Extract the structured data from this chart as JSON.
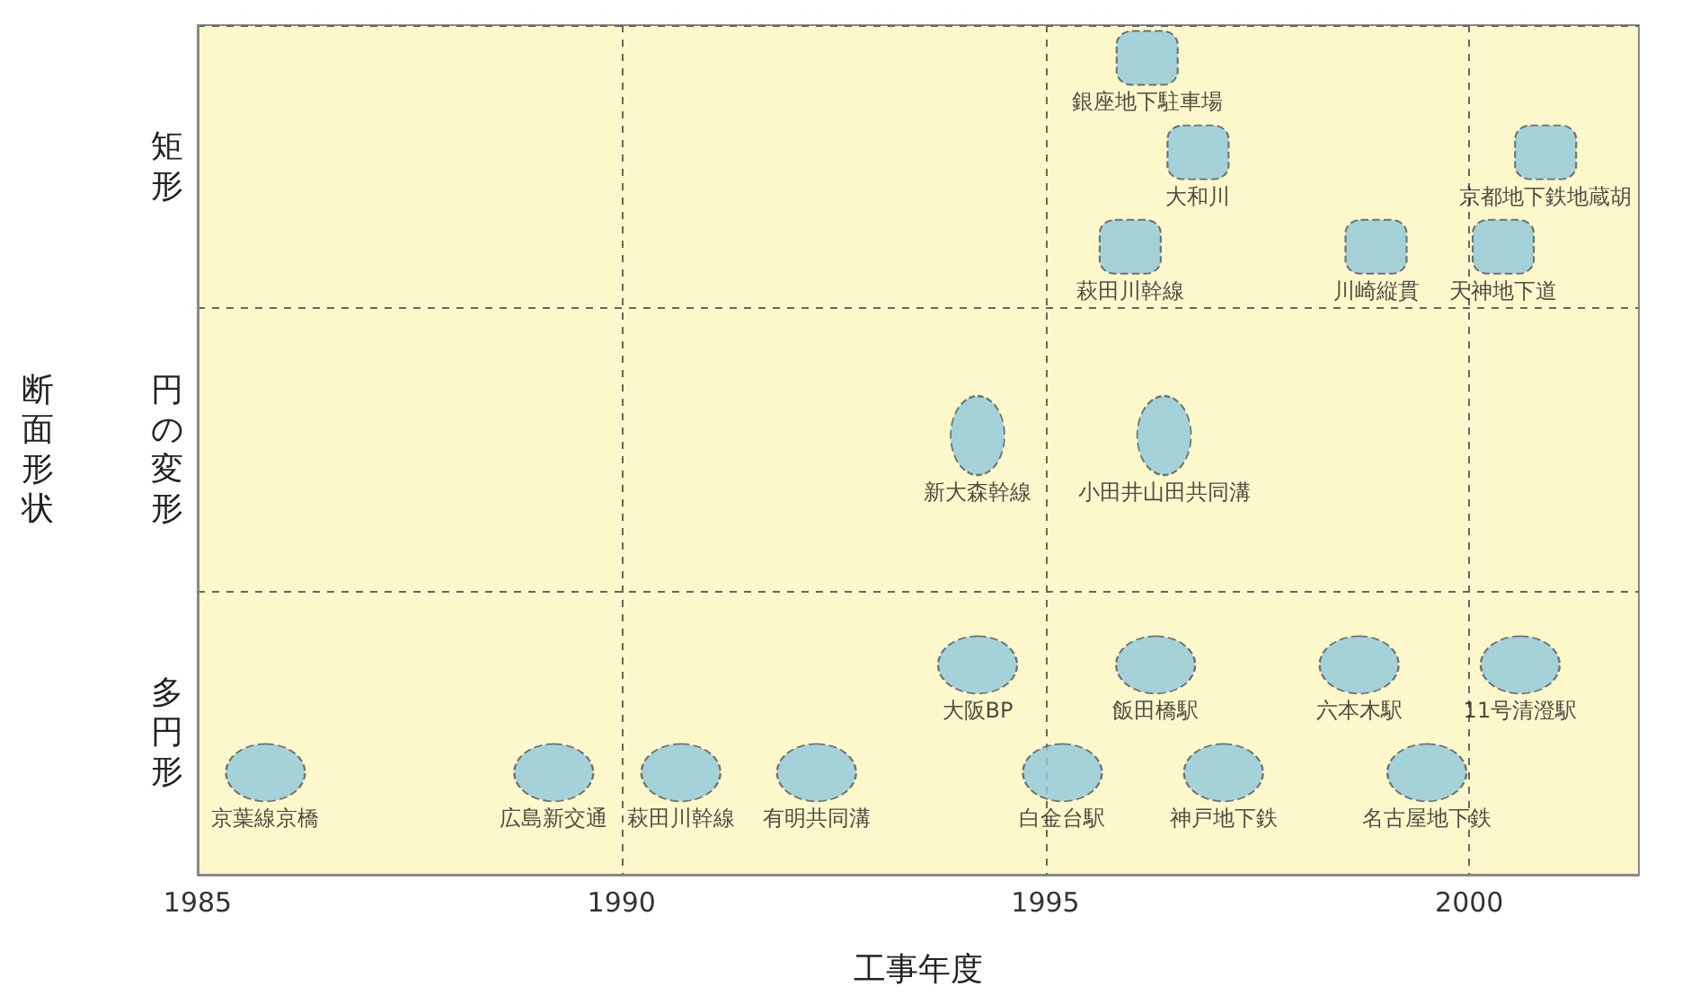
{
  "chart_data": {
    "type": "scatter",
    "orientation": "horizontal",
    "xlabel": "工事年度",
    "ylabel": "断面形状",
    "categories": [
      "矩形",
      "円の変形",
      "多円形"
    ],
    "xlim": [
      1985,
      2002
    ],
    "xticks": [
      1985,
      1990,
      1995,
      2000
    ],
    "grid": true,
    "legend": false,
    "marker": "circle",
    "series": [
      {
        "name": "京葉線京橋",
        "color": "#8fc8dc",
        "values": [
          null,
          null,
          1985.8
        ]
      },
      {
        "name": "広島新交通",
        "color": "#8fc8dc",
        "values": [
          null,
          null,
          1989.2
        ]
      },
      {
        "name": "萩田川幹線",
        "color": "#8fc8dc",
        "values": [
          null,
          null,
          1990.7
        ]
      },
      {
        "name": "有明共同溝",
        "color": "#8fc8dc",
        "values": [
          null,
          null,
          1992.3
        ]
      },
      {
        "name": "白金台駅",
        "color": "#8fc8dc",
        "values": [
          null,
          null,
          1995.2
        ]
      },
      {
        "name": "神戸地下鉄",
        "color": "#8fc8dc",
        "values": [
          null,
          null,
          1997.1
        ]
      },
      {
        "name": "名古屋地下鉄",
        "color": "#8fc8dc",
        "values": [
          null,
          null,
          1999.5
        ]
      },
      {
        "name": "大阪BP",
        "color": "#8fc8dc",
        "values": [
          null,
          null,
          1994.2
        ]
      },
      {
        "name": "飯田橋駅",
        "color": "#8fc8dc",
        "values": [
          null,
          null,
          1996.3
        ]
      },
      {
        "name": "六本木駅",
        "color": "#8fc8dc",
        "values": [
          null,
          null,
          1998.7
        ]
      },
      {
        "name": "11号清澄駅",
        "color": "#8fc8dc",
        "values": [
          null,
          null,
          2000.6
        ]
      },
      {
        "name": "新大森幹線",
        "color": "#8fc8dc",
        "values": [
          null,
          1994.2,
          null
        ]
      },
      {
        "name": "小田井山田共同溝",
        "color": "#8fc8dc",
        "values": [
          null,
          1996.4,
          null
        ]
      },
      {
        "name": "萩田川幹線",
        "color": "#8fc8dc",
        "marker": "square",
        "values": [
          1996.0,
          null,
          null
        ]
      },
      {
        "name": "大和川",
        "color": "#8fc8dc",
        "marker": "square",
        "values": [
          1996.8,
          null,
          null
        ]
      },
      {
        "name": "川崎縦貫",
        "color": "#8fc8dc",
        "marker": "square",
        "values": [
          1998.9,
          null,
          null
        ]
      },
      {
        "name": "天神地下道",
        "color": "#8fc8dc",
        "marker": "square",
        "values": [
          2000.4,
          null,
          null
        ]
      },
      {
        "name": "銀座地下駐車場",
        "color": "#8fc8dc",
        "marker": "square",
        "values": [
          1996.2,
          null,
          null
        ]
      },
      {
        "name": "京都地下鉄地蔵胡",
        "color": "#8fc8dc",
        "marker": "square",
        "values": [
          2000.9,
          null,
          null
        ]
      }
    ]
  }
}
